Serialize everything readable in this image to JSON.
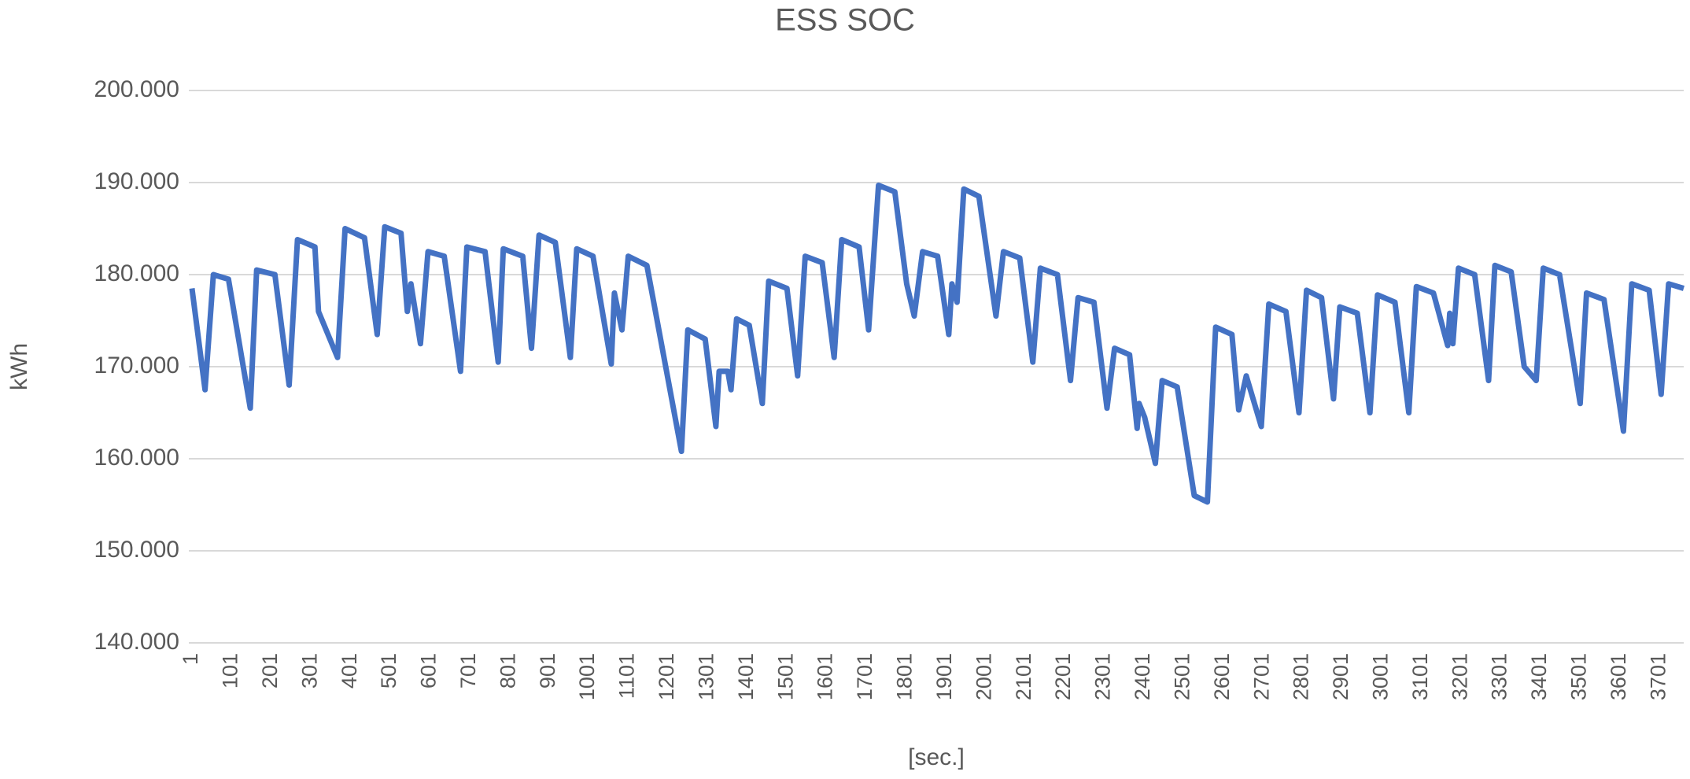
{
  "chart_data": {
    "type": "line",
    "title": "ESS SOC",
    "x_label": "[sec.]",
    "y_label": "kWh",
    "color": "#4472c4",
    "grid": true,
    "x": [
      1,
      34,
      55,
      93,
      148,
      164,
      210,
      246,
      267,
      311,
      320,
      368,
      387,
      436,
      468,
      487,
      528,
      544,
      553,
      577,
      596,
      637,
      678,
      694,
      740,
      773,
      786,
      835,
      857,
      876,
      917,
      955,
      971,
      1012,
      1058,
      1066,
      1085,
      1101,
      1148,
      1235,
      1251,
      1295,
      1322,
      1330,
      1352,
      1360,
      1374,
      1406,
      1439,
      1455,
      1501,
      1528,
      1547,
      1590,
      1620,
      1639,
      1683,
      1707,
      1732,
      1773,
      1803,
      1822,
      1843,
      1881,
      1909,
      1917,
      1930,
      1947,
      1985,
      2028,
      2047,
      2088,
      2121,
      2140,
      2183,
      2216,
      2235,
      2275,
      2308,
      2327,
      2365,
      2384,
      2389,
      2403,
      2430,
      2447,
      2485,
      2528,
      2561,
      2582,
      2623,
      2640,
      2659,
      2697,
      2716,
      2759,
      2792,
      2811,
      2849,
      2879,
      2895,
      2939,
      2971,
      2990,
      3034,
      3069,
      3088,
      3131,
      3167,
      3172,
      3180,
      3194,
      3235,
      3270,
      3286,
      3327,
      3360,
      3390,
      3408,
      3449,
      3501,
      3517,
      3561,
      3610,
      3631,
      3675,
      3705,
      3724,
      3762
    ],
    "values": [
      178.5,
      167.5,
      180,
      179.5,
      165.5,
      180.5,
      180,
      168,
      183.8,
      183,
      176,
      171,
      185,
      184,
      173.5,
      185.2,
      184.5,
      176,
      179,
      172.5,
      182.5,
      182,
      169.5,
      183,
      182.5,
      170.5,
      182.8,
      182,
      172,
      184.3,
      183.5,
      171,
      182.8,
      182,
      170.3,
      178,
      174,
      182,
      181,
      160.8,
      174,
      173,
      163.5,
      169.5,
      169.5,
      167.5,
      175.2,
      174.5,
      166,
      179.3,
      178.5,
      169,
      182,
      181.3,
      171,
      183.8,
      183,
      174,
      189.7,
      189,
      179,
      175.5,
      182.5,
      182,
      173.5,
      179,
      177,
      189.3,
      188.5,
      175.5,
      182.5,
      181.8,
      170.5,
      180.7,
      180,
      168.5,
      177.5,
      177,
      165.5,
      172,
      171.3,
      163.3,
      166,
      164.5,
      159.5,
      168.5,
      167.8,
      156,
      155.3,
      174.3,
      173.5,
      165.3,
      169,
      163.5,
      176.8,
      176,
      165,
      178.3,
      177.5,
      166.5,
      176.5,
      175.8,
      165,
      177.8,
      177,
      165,
      178.7,
      178,
      172.3,
      175.8,
      172.5,
      180.7,
      180,
      168.5,
      181,
      180.3,
      170,
      168.5,
      180.7,
      180,
      166,
      178,
      177.3,
      163,
      179,
      178.3,
      167,
      179,
      178.5
    ],
    "xlim": [
      1,
      3762
    ],
    "xticks": [
      1,
      101,
      201,
      301,
      401,
      501,
      601,
      701,
      801,
      901,
      1001,
      1101,
      1201,
      1301,
      1401,
      1501,
      1601,
      1701,
      1801,
      1901,
      2001,
      2101,
      2201,
      2301,
      2401,
      2501,
      2601,
      2701,
      2801,
      2901,
      3001,
      3101,
      3201,
      3301,
      3401,
      3501,
      3601,
      3701
    ],
    "ylim": [
      140,
      200
    ],
    "yticks": [
      {
        "value": 140,
        "label": "140.000"
      },
      {
        "value": 150,
        "label": "150.000"
      },
      {
        "value": 160,
        "label": "160.000"
      },
      {
        "value": 170,
        "label": "170.000"
      },
      {
        "value": 180,
        "label": "180.000"
      },
      {
        "value": 190,
        "label": "190.000"
      },
      {
        "value": 200,
        "label": "200.000"
      }
    ]
  }
}
